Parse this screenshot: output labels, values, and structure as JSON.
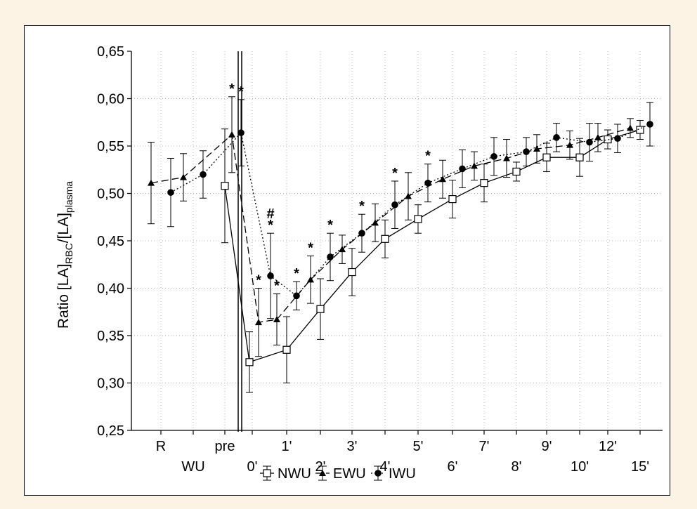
{
  "chart_data": {
    "type": "line",
    "ylabel": {
      "prefix": "Ratio [LA]",
      "sub1": "RBC",
      "mid": "/[LA]",
      "sub2": "plasma"
    },
    "ylim": [
      0.25,
      0.65
    ],
    "yticks": [
      "0,25",
      "0,30",
      "0,35",
      "0,40",
      "0,45",
      "0,50",
      "0,55",
      "0,60",
      "0,65"
    ],
    "categories": [
      "R",
      "WU",
      "pre",
      "0'",
      "1'",
      "2'",
      "3'",
      "4'",
      "5'",
      "6'",
      "7'",
      "8'",
      "9'",
      "10'",
      "12'",
      "15'"
    ],
    "grid": true,
    "legend_position": "bottom-center",
    "series": [
      {
        "name": "NWU",
        "marker": "open-square",
        "dash": "solid",
        "values": [
          null,
          null,
          0.508,
          0.322,
          0.335,
          0.378,
          0.417,
          0.452,
          0.473,
          0.494,
          0.511,
          0.523,
          0.538,
          0.538,
          0.557,
          0.567
        ],
        "errors": [
          null,
          null,
          0.06,
          0.032,
          0.035,
          0.032,
          0.025,
          0.02,
          0.015,
          0.02,
          0.02,
          0.01,
          0.015,
          0.02,
          0.01,
          0.01
        ]
      },
      {
        "name": "EWU",
        "marker": "filled-triangle",
        "dash": "dashed",
        "values": [
          0.511,
          0.517,
          0.562,
          0.364,
          0.367,
          0.409,
          0.441,
          0.469,
          0.497,
          0.515,
          0.529,
          0.537,
          0.547,
          0.551,
          0.559,
          0.569
        ],
        "errors": [
          0.043,
          0.025,
          0.04,
          0.036,
          0.027,
          0.025,
          0.015,
          0.02,
          0.025,
          0.02,
          0.015,
          0.02,
          0.015,
          0.015,
          0.015,
          0.01
        ]
      },
      {
        "name": "IWU",
        "marker": "filled-circle",
        "dash": "dotted",
        "values": [
          0.501,
          0.52,
          0.564,
          0.413,
          0.392,
          0.433,
          0.458,
          0.488,
          0.511,
          0.526,
          0.539,
          0.544,
          0.559,
          0.554,
          0.558,
          0.573
        ],
        "errors": [
          0.036,
          0.025,
          0.035,
          0.045,
          0.015,
          0.025,
          0.02,
          0.025,
          0.02,
          0.02,
          0.02,
          0.015,
          0.015,
          0.02,
          0.015,
          0.023
        ]
      }
    ],
    "annotations": [
      {
        "text": "*",
        "category": "pre",
        "series": "EWU"
      },
      {
        "text": "*",
        "category": "pre",
        "series": "IWU"
      },
      {
        "text": "*",
        "category": "0'",
        "series": "EWU"
      },
      {
        "text": "*",
        "category": "0'",
        "series": "IWU"
      },
      {
        "text": "#",
        "category": "0'",
        "series": "IWU"
      },
      {
        "text": "*",
        "category": "1'",
        "series": "EWU"
      },
      {
        "text": "*",
        "category": "1'",
        "series": "IWU"
      },
      {
        "text": "*",
        "category": "2'",
        "series": "EWU"
      },
      {
        "text": "*",
        "category": "2'",
        "series": "IWU"
      },
      {
        "text": "*",
        "category": "3'",
        "series": "IWU"
      },
      {
        "text": "*",
        "category": "4'",
        "series": "IWU"
      },
      {
        "text": "*",
        "category": "5'",
        "series": "IWU"
      }
    ]
  }
}
